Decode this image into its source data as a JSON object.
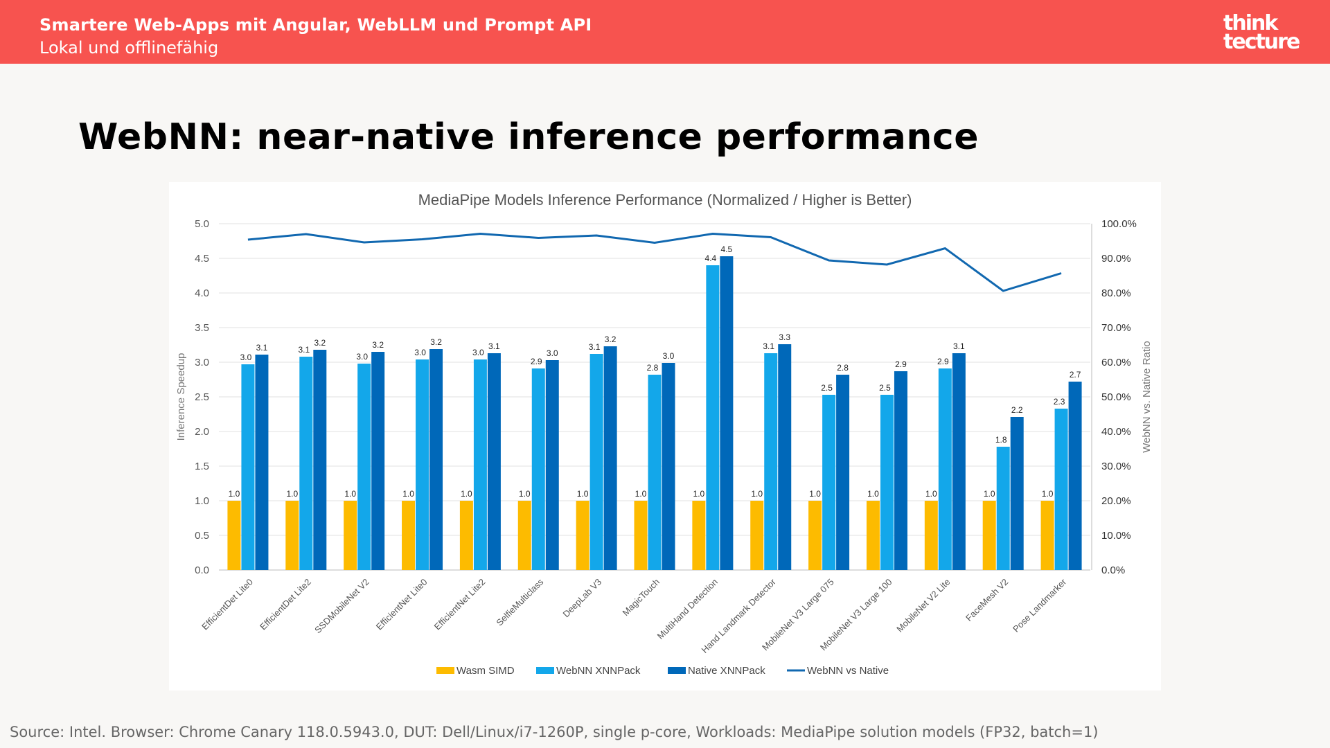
{
  "header": {
    "title": "Smartere Web-Apps mit Angular, WebLLM und Prompt API",
    "subtitle": "Lokal und offlinefähig",
    "logo_line1": "think",
    "logo_line2": "tecture",
    "background": "#f7534f"
  },
  "slide": {
    "title": "WebNN: near-native inference performance",
    "source": "Source: Intel. Browser: Chrome Canary 118.0.5943.0, DUT: Dell/Linux/i7-1260P, single p-core, Workloads: MediaPipe solution models (FP32, batch=1)"
  },
  "chart_data": {
    "type": "bar",
    "title": "MediaPipe Models Inference Performance (Normalized / Higher is Better)",
    "ylabel": "Inference Speedup",
    "y2label": "WebNN vs. Native Ratio",
    "ylim": [
      0,
      5
    ],
    "yticks": [
      "0.0",
      "0.5",
      "1.0",
      "1.5",
      "2.0",
      "2.5",
      "3.0",
      "3.5",
      "4.0",
      "4.5",
      "5.0"
    ],
    "y2lim": [
      0,
      100
    ],
    "y2ticks": [
      "0.0%",
      "10.0%",
      "20.0%",
      "30.0%",
      "40.0%",
      "50.0%",
      "60.0%",
      "70.0%",
      "80.0%",
      "90.0%",
      "100.0%"
    ],
    "legend_position": "bottom",
    "categories": [
      "EfficientDet Lite0",
      "EfficientDet Lite2",
      "SSDMobileNet V2",
      "EfficientNet Lite0",
      "EfficientNet Lite2",
      "SelfieMulticlass",
      "DeepLab V3",
      "MagicTouch",
      "MultiHand Detection",
      "Hand Landmark Detector",
      "MobileNet V3 Large 075",
      "MobileNet V3 Large 100",
      "MobileNet V2 Lite",
      "FaceMesh V2",
      "Pose Landmarker"
    ],
    "series": [
      {
        "name": "Wasm SIMD",
        "color": "#fdbb00",
        "values": [
          1.0,
          1.0,
          1.0,
          1.0,
          1.0,
          1.0,
          1.0,
          1.0,
          1.0,
          1.0,
          1.0,
          1.0,
          1.0,
          1.0,
          1.0
        ],
        "labels": [
          "1.0",
          "1.0",
          "1.0",
          "1.0",
          "1.0",
          "1.0",
          "1.0",
          "1.0",
          "1.0",
          "1.0",
          "1.0",
          "1.0",
          "1.0",
          "1.0",
          "1.0"
        ]
      },
      {
        "name": "WebNN XNNPack",
        "color": "#13a7ea",
        "values": [
          2.97,
          3.08,
          2.98,
          3.04,
          3.04,
          2.91,
          3.12,
          2.82,
          4.4,
          3.13,
          2.53,
          2.53,
          2.91,
          1.78,
          2.33
        ],
        "labels": [
          "3.0",
          "3.1",
          "3.0",
          "3.0",
          "3.0",
          "2.9",
          "3.1",
          "2.8",
          "4.4",
          "3.1",
          "2.5",
          "2.5",
          "2.9",
          "1.8",
          "2.3"
        ]
      },
      {
        "name": "Native XNNPack",
        "color": "#0068b9",
        "values": [
          3.11,
          3.18,
          3.15,
          3.19,
          3.13,
          3.03,
          3.23,
          2.99,
          4.53,
          3.26,
          2.82,
          2.87,
          3.13,
          2.21,
          2.72
        ],
        "labels": [
          "3.1",
          "3.2",
          "3.2",
          "3.2",
          "3.1",
          "3.0",
          "3.2",
          "3.0",
          "4.5",
          "3.3",
          "2.8",
          "2.9",
          "3.1",
          "2.2",
          "2.7"
        ]
      }
    ],
    "line_series": {
      "name": "WebNN vs Native",
      "color": "#1168b0",
      "axis": "secondary",
      "values": [
        95.4,
        97.0,
        94.6,
        95.5,
        97.1,
        95.9,
        96.6,
        94.5,
        97.1,
        96.1,
        89.4,
        88.2,
        92.9,
        80.6,
        85.7
      ]
    }
  }
}
